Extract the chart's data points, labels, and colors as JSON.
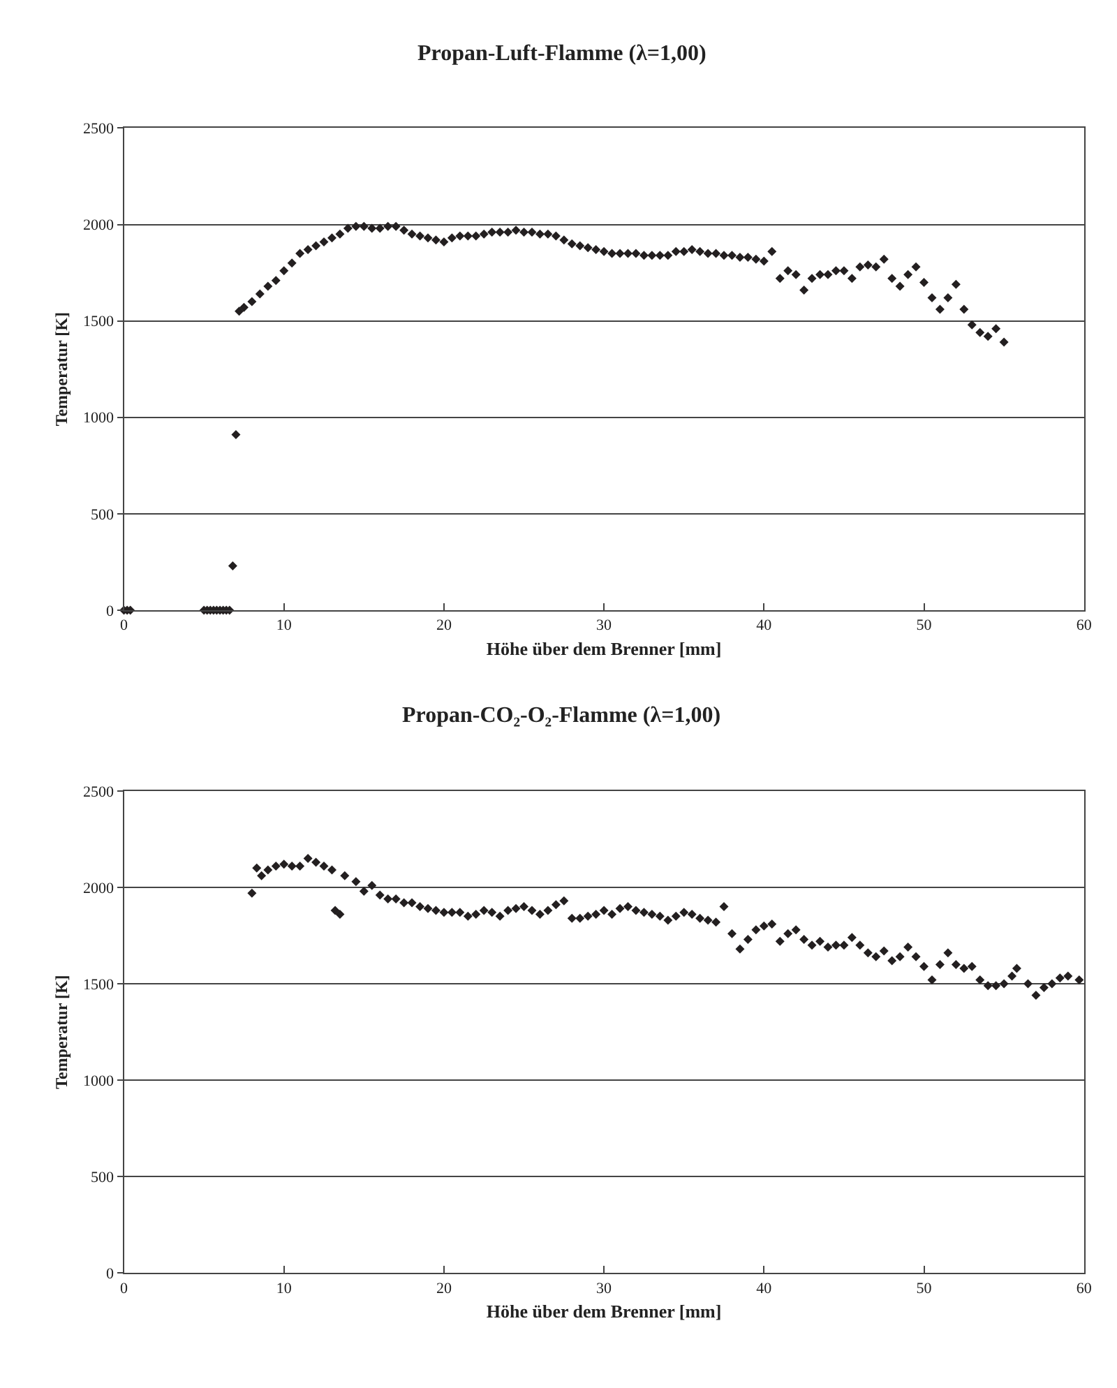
{
  "chart_data": [
    {
      "type": "scatter",
      "title": "Propan-Luft-Flamme (λ=1,00)",
      "xlabel": "Höhe über dem Brenner [mm]",
      "ylabel": "Temperatur [K]",
      "marker": "diamond",
      "grid": "y",
      "xlim": [
        0,
        60
      ],
      "xticks": [
        0,
        10,
        20,
        30,
        40,
        50,
        60
      ],
      "ylim": [
        0,
        2500
      ],
      "yticks": [
        0,
        500,
        1000,
        1500,
        2000,
        2500
      ],
      "x": [
        0,
        0.2,
        0.4,
        5,
        5.2,
        5.4,
        5.6,
        5.8,
        6,
        6.2,
        6.4,
        6.6,
        6.8,
        7.0,
        7.2,
        7.5,
        8,
        8.5,
        9,
        9.5,
        10,
        10.5,
        11,
        11.5,
        12,
        12.5,
        13,
        13.5,
        14,
        14.5,
        15,
        15.5,
        16,
        16.5,
        17,
        17.5,
        18,
        18.5,
        19,
        19.5,
        20,
        20.5,
        21,
        21.5,
        22,
        22.5,
        23,
        23.5,
        24,
        24.5,
        25,
        25.5,
        26,
        26.5,
        27,
        27.5,
        28,
        28.5,
        29,
        29.5,
        30,
        30.5,
        31,
        31.5,
        32,
        32.5,
        33,
        33.5,
        34,
        34.5,
        35,
        35.5,
        36,
        36.5,
        37,
        37.5,
        38,
        38.5,
        39,
        39.5,
        40,
        40.5,
        41,
        41.5,
        42,
        42.5,
        43,
        43.5,
        44,
        44.5,
        45,
        45.5,
        46,
        46.5,
        47,
        47.5,
        48,
        48.5,
        49,
        49.5,
        50,
        50.5,
        51,
        51.5,
        52,
        52.5,
        53,
        53.5,
        54,
        54.5,
        55
      ],
      "series": [
        {
          "color": "#231f20",
          "values": [
            0,
            0,
            0,
            0,
            0,
            0,
            0,
            0,
            0,
            0,
            0,
            0,
            230,
            910,
            1550,
            1570,
            1600,
            1640,
            1680,
            1710,
            1760,
            1800,
            1850,
            1870,
            1890,
            1910,
            1930,
            1950,
            1980,
            1990,
            1990,
            1980,
            1980,
            1990,
            1990,
            1970,
            1950,
            1940,
            1930,
            1920,
            1910,
            1930,
            1940,
            1940,
            1940,
            1950,
            1960,
            1960,
            1960,
            1970,
            1960,
            1960,
            1950,
            1950,
            1940,
            1920,
            1900,
            1890,
            1880,
            1870,
            1860,
            1850,
            1850,
            1850,
            1850,
            1840,
            1840,
            1840,
            1840,
            1860,
            1860,
            1870,
            1860,
            1850,
            1850,
            1840,
            1840,
            1830,
            1830,
            1820,
            1810,
            1860,
            1720,
            1760,
            1740,
            1660,
            1720,
            1740,
            1740,
            1760,
            1760,
            1720,
            1780,
            1790,
            1780,
            1820,
            1720,
            1680,
            1740,
            1780,
            1700,
            1620,
            1560,
            1620,
            1690,
            1560,
            1480,
            1440,
            1420,
            1460,
            1390
          ]
        }
      ]
    },
    {
      "type": "scatter",
      "title": "Propan-CO₂-O₂-Flamme (λ=1,00)",
      "xlabel": "Höhe über dem Brenner [mm]",
      "ylabel": "Temperatur [K]",
      "marker": "diamond",
      "grid": "y",
      "xlim": [
        0,
        60
      ],
      "xticks": [
        0,
        10,
        20,
        30,
        40,
        50,
        60
      ],
      "ylim": [
        0,
        2500
      ],
      "yticks": [
        0,
        500,
        1000,
        1500,
        2000,
        2500
      ],
      "x": [
        8,
        8.3,
        8.6,
        9,
        9.5,
        10,
        10.5,
        11,
        11.5,
        12,
        12.5,
        13,
        13.2,
        13.5,
        13.8,
        14.5,
        15,
        15.5,
        16,
        16.5,
        17,
        17.5,
        18,
        18.5,
        19,
        19.5,
        20,
        20.5,
        21,
        21.5,
        22,
        22.5,
        23,
        23.5,
        24,
        24.5,
        25,
        25.5,
        26,
        26.5,
        27,
        27.5,
        28,
        28.5,
        29,
        29.5,
        30,
        30.5,
        31,
        31.5,
        32,
        32.5,
        33,
        33.5,
        34,
        34.5,
        35,
        35.5,
        36,
        36.5,
        37,
        37.5,
        38,
        38.5,
        39,
        39.5,
        40,
        40.5,
        41,
        41.5,
        42,
        42.5,
        43,
        43.5,
        44,
        44.5,
        45,
        45.5,
        46,
        46.5,
        47,
        47.5,
        48,
        48.5,
        49,
        49.5,
        50,
        50.5,
        51,
        51.5,
        52,
        52.5,
        53,
        53.5,
        54,
        54.5,
        55,
        55.5,
        55.8,
        56.5,
        57,
        57.5,
        58,
        58.5,
        59,
        59.7
      ],
      "series": [
        {
          "color": "#231f20",
          "values": [
            1970,
            2100,
            2060,
            2090,
            2110,
            2120,
            2110,
            2110,
            2150,
            2130,
            2110,
            2090,
            1880,
            1860,
            2060,
            2030,
            1980,
            2010,
            1960,
            1940,
            1940,
            1920,
            1920,
            1900,
            1890,
            1880,
            1870,
            1870,
            1870,
            1850,
            1860,
            1880,
            1870,
            1850,
            1880,
            1890,
            1900,
            1880,
            1860,
            1880,
            1910,
            1930,
            1840,
            1840,
            1850,
            1860,
            1880,
            1860,
            1890,
            1900,
            1880,
            1870,
            1860,
            1850,
            1830,
            1850,
            1870,
            1860,
            1840,
            1830,
            1820,
            1900,
            1760,
            1680,
            1730,
            1780,
            1800,
            1810,
            1720,
            1760,
            1780,
            1730,
            1700,
            1720,
            1690,
            1700,
            1700,
            1740,
            1700,
            1660,
            1640,
            1670,
            1620,
            1640,
            1690,
            1640,
            1590,
            1520,
            1600,
            1660,
            1600,
            1580,
            1590,
            1520,
            1490,
            1490,
            1500,
            1540,
            1580,
            1500,
            1440,
            1480,
            1500,
            1530,
            1540,
            1520
          ]
        }
      ]
    }
  ]
}
